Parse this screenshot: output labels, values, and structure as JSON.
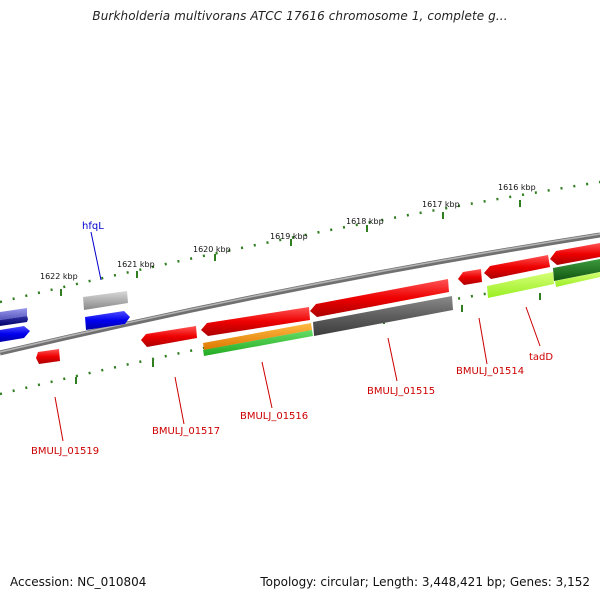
{
  "title": "Burkholderia multivorans ATCC 17616 chromosome 1, complete g...",
  "accession": "Accession: NC_010804",
  "topology": "Topology: circular; Length: 3,448,421 bp; Genes: 3,152",
  "ruler_ticks": [
    "1622 kbp",
    "1621 kbp",
    "1620 kbp",
    "1619 kbp",
    "1618 kbp",
    "1617 kbp",
    "1616 kbp"
  ],
  "gene_labels": [
    "hfqL",
    "BMULJ_01519",
    "BMULJ_01517",
    "BMULJ_01516",
    "BMULJ_01515",
    "BMULJ_01514",
    "tadD"
  ],
  "colors": {
    "backbone": "#808080",
    "ruler": "#2e7d1e",
    "cds": "#ff0000",
    "gene_blue": "#0000ee",
    "gene_grey": "#a8a8a8",
    "gene_darkgrey": "#606060",
    "gene_orange": "#ff9900",
    "gene_green": "#33cc33",
    "gene_lime": "#b3ff33",
    "gene_darkgreen": "#1a7a1a",
    "gene_navy": "#000080",
    "gene_lavender": "#6666cc",
    "label_red": "#cc0000",
    "label_blue": "#0000cc"
  }
}
